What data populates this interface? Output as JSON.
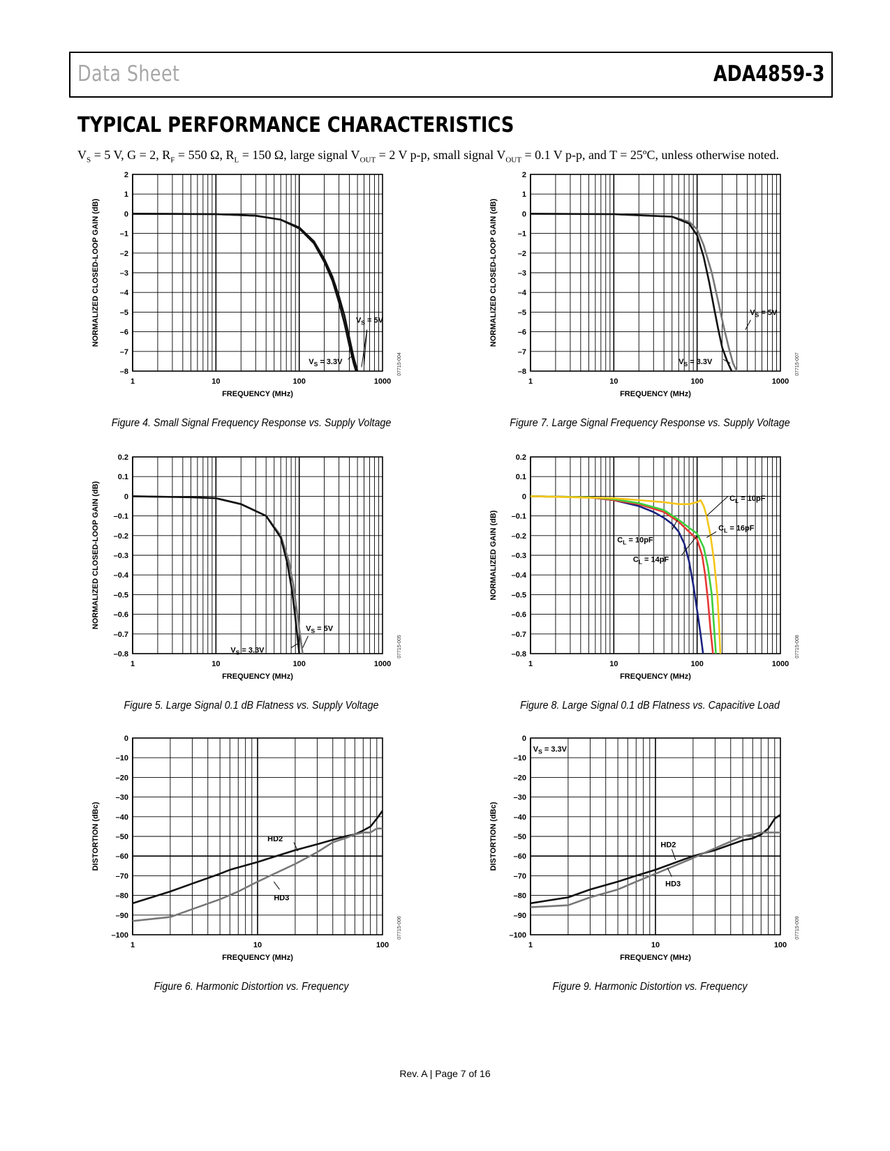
{
  "header": {
    "doc_type": "Data Sheet",
    "part_number": "ADA4859-3"
  },
  "section_title": "TYPICAL PERFORMANCE CHARACTERISTICS",
  "conditions": {
    "p1": "V",
    "s1": "S",
    "p2": " = 5 V, G = 2, R",
    "s2": "F",
    "p3": " = 550 Ω, R",
    "s3": "L",
    "p4": " = 150 Ω, large signal V",
    "s4": "OUT",
    "p5": " = 2 V p-p, small signal V",
    "s5": "OUT",
    "p6": " = 0.1 V p-p, and T = 25ºC, unless otherwise noted."
  },
  "footer": "Rev. A | Page 7 of 16",
  "colors": {
    "black": "#111111",
    "gray": "#777777",
    "navy": "#1a237e",
    "red": "#e53935",
    "green": "#3ccf3c",
    "yellow": "#f5c518"
  },
  "chart_data": [
    {
      "id": "fig4",
      "type": "line",
      "caption": "Figure 4. Small Signal Frequency Response vs. Supply Voltage",
      "code": "07715-004",
      "xlabel": "FREQUENCY (MHz)",
      "ylabel": "NORMALIZED CLOSED-LOOP GAIN (dB)",
      "xscale": "log",
      "xlim": [
        1,
        1000
      ],
      "ylim": [
        -8,
        2
      ],
      "xticks": [
        1,
        10,
        100,
        1000
      ],
      "xtick_labels": [
        "1",
        "10",
        "100",
        "1000"
      ],
      "yticks": [
        2,
        1,
        0,
        -1,
        -2,
        -3,
        -4,
        -5,
        -6,
        -7,
        -8
      ],
      "ytick_labels": [
        "2",
        "1",
        "0",
        "–1",
        "–2",
        "–3",
        "–4",
        "–5",
        "–6",
        "–7",
        "–8"
      ],
      "series": [
        {
          "name": "VS = 5V",
          "color": "#111111",
          "x": [
            1,
            10,
            30,
            60,
            100,
            150,
            200,
            250,
            300,
            350,
            400,
            450,
            500
          ],
          "y": [
            0,
            -0.02,
            -0.1,
            -0.3,
            -0.7,
            -1.4,
            -2.3,
            -3.2,
            -4.2,
            -5.2,
            -6.3,
            -7.3,
            -8
          ]
        },
        {
          "name": "VS = 3.3V",
          "color": "#111111",
          "x": [
            1,
            10,
            30,
            60,
            100,
            150,
            200,
            250,
            300,
            350,
            400,
            450,
            480
          ],
          "y": [
            0,
            -0.02,
            -0.1,
            -0.3,
            -0.75,
            -1.5,
            -2.45,
            -3.4,
            -4.5,
            -5.6,
            -6.7,
            -7.6,
            -8
          ]
        }
      ],
      "annotations": [
        {
          "main": "V",
          "sub": "S",
          "rest": " = 5V",
          "x": 480,
          "y": -5.4,
          "anchor": "start",
          "leaders": [
            [
              650,
              -5.9,
              560,
              -7.8
            ],
            [
              650,
              -5.9,
              600,
              -7.7
            ]
          ]
        },
        {
          "main": "V",
          "sub": "S",
          "rest": " = 3.3V",
          "x": 130,
          "y": -7.5,
          "anchor": "start",
          "leaders": [
            [
              385,
              -7.4,
              440,
              -7.2
            ]
          ]
        }
      ]
    },
    {
      "id": "fig7",
      "type": "line",
      "caption": "Figure 7. Large Signal Frequency Response vs. Supply Voltage",
      "code": "07715-007",
      "xlabel": "FREQUENCY (MHz)",
      "ylabel": "NORMALIZED CLOSED-LOOP GAIN (dB)",
      "xscale": "log",
      "xlim": [
        1,
        1000
      ],
      "ylim": [
        -8,
        2
      ],
      "xticks": [
        1,
        10,
        100,
        1000
      ],
      "xtick_labels": [
        "1",
        "10",
        "100",
        "1000"
      ],
      "yticks": [
        2,
        1,
        0,
        -1,
        -2,
        -3,
        -4,
        -5,
        -6,
        -7,
        -8
      ],
      "ytick_labels": [
        "2",
        "1",
        "0",
        "–1",
        "–2",
        "–3",
        "–4",
        "–5",
        "–6",
        "–7",
        "–8"
      ],
      "series": [
        {
          "name": "VS = 5V",
          "color": "#777777",
          "x": [
            1,
            10,
            50,
            80,
            100,
            120,
            150,
            180,
            210,
            240,
            270,
            300
          ],
          "y": [
            0,
            -0.02,
            -0.15,
            -0.4,
            -0.8,
            -1.6,
            -3.0,
            -4.5,
            -5.8,
            -6.8,
            -7.6,
            -8
          ]
        },
        {
          "name": "VS = 3.3V",
          "color": "#111111",
          "x": [
            1,
            10,
            50,
            80,
            100,
            120,
            140,
            160,
            180,
            200,
            230,
            260
          ],
          "y": [
            0,
            -0.02,
            -0.15,
            -0.5,
            -1.1,
            -2.2,
            -3.5,
            -4.8,
            -5.9,
            -6.8,
            -7.5,
            -8
          ]
        }
      ],
      "annotations": [
        {
          "main": "V",
          "sub": "S",
          "rest": " = 5V",
          "x": 430,
          "y": -5.0,
          "anchor": "start",
          "leaders": [
            [
              440,
              -5.4,
              380,
              -5.9
            ]
          ]
        },
        {
          "main": "V",
          "sub": "S",
          "rest": " = 3.3V",
          "x": 60,
          "y": -7.5,
          "anchor": "start",
          "leaders": [
            [
              205,
              -7.4,
              250,
              -7.6
            ]
          ]
        }
      ]
    },
    {
      "id": "fig5",
      "type": "line",
      "caption": "Figure 5. Large Signal 0.1 dB Flatness vs. Supply Voltage",
      "code": "07715-005",
      "xlabel": "FREQUENCY (MHz)",
      "ylabel": "NORMALIZED CLOSED-LOOP GAIN (dB)",
      "xscale": "log",
      "xlim": [
        1,
        1000
      ],
      "ylim": [
        -0.8,
        0.2
      ],
      "xticks": [
        1,
        10,
        100,
        1000
      ],
      "xtick_labels": [
        "1",
        "10",
        "100",
        "1000"
      ],
      "yticks": [
        0.2,
        0.1,
        0,
        -0.1,
        -0.2,
        -0.3,
        -0.4,
        -0.5,
        -0.6,
        -0.7,
        -0.8
      ],
      "ytick_labels": [
        "0.2",
        "0.1",
        "0",
        "–0.1",
        "–0.2",
        "–0.3",
        "–0.4",
        "–0.5",
        "–0.6",
        "–0.7",
        "–0.8"
      ],
      "series": [
        {
          "name": "VS = 5V",
          "color": "#777777",
          "x": [
            1,
            5,
            10,
            20,
            40,
            60,
            75,
            85,
            95,
            102,
            110
          ],
          "y": [
            0,
            -0.005,
            -0.01,
            -0.04,
            -0.1,
            -0.2,
            -0.33,
            -0.45,
            -0.6,
            -0.7,
            -0.8
          ]
        },
        {
          "name": "VS = 3.3V",
          "color": "#111111",
          "x": [
            1,
            5,
            10,
            20,
            40,
            60,
            72,
            82,
            90,
            95,
            100
          ],
          "y": [
            0,
            -0.005,
            -0.01,
            -0.04,
            -0.1,
            -0.21,
            -0.34,
            -0.48,
            -0.62,
            -0.71,
            -0.8
          ]
        }
      ],
      "annotations": [
        {
          "main": "V",
          "sub": "S",
          "rest": " = 5V",
          "x": 120,
          "y": -0.67,
          "anchor": "start",
          "leaders": [
            [
              128,
              -0.71,
              110,
              -0.77
            ]
          ]
        },
        {
          "main": "V",
          "sub": "S",
          "rest": " = 3.3V",
          "x": 15,
          "y": -0.78,
          "anchor": "start",
          "leaders": [
            [
              80,
              -0.77,
              95,
              -0.75
            ]
          ]
        }
      ]
    },
    {
      "id": "fig8",
      "type": "line",
      "caption": "Figure 8. Large Signal 0.1 dB Flatness vs. Capacitive Load",
      "code": "07715-008",
      "xlabel": "FREQUENCY (MHz)",
      "ylabel": "NORMALIZED GAIN (dB)",
      "xscale": "log",
      "xlim": [
        1,
        1000
      ],
      "ylim": [
        -0.8,
        0.2
      ],
      "xticks": [
        1,
        10,
        100,
        1000
      ],
      "xtick_labels": [
        "1",
        "10",
        "100",
        "1000"
      ],
      "yticks": [
        0.2,
        0.1,
        0,
        -0.1,
        -0.2,
        -0.3,
        -0.4,
        -0.5,
        -0.6,
        -0.7,
        -0.8
      ],
      "ytick_labels": [
        "0.2",
        "0.1",
        "0",
        "–0.1",
        "–0.2",
        "–0.3",
        "–0.4",
        "–0.5",
        "–0.6",
        "–0.7",
        "–0.8"
      ],
      "series": [
        {
          "name": "navy",
          "color": "#1a237e",
          "x": [
            1,
            5,
            10,
            20,
            30,
            40,
            50,
            60,
            70,
            80,
            90,
            100,
            110,
            118
          ],
          "y": [
            0,
            -0.005,
            -0.02,
            -0.05,
            -0.08,
            -0.11,
            -0.14,
            -0.18,
            -0.24,
            -0.33,
            -0.45,
            -0.58,
            -0.7,
            -0.8
          ]
        },
        {
          "name": "red",
          "color": "#e53935",
          "x": [
            1,
            5,
            10,
            20,
            40,
            60,
            80,
            100,
            115,
            125,
            135,
            145,
            155
          ],
          "y": [
            0,
            -0.005,
            -0.02,
            -0.04,
            -0.08,
            -0.13,
            -0.18,
            -0.22,
            -0.3,
            -0.4,
            -0.53,
            -0.68,
            -0.8
          ]
        },
        {
          "name": "green",
          "color": "#3ccf3c",
          "x": [
            1,
            5,
            10,
            20,
            40,
            60,
            80,
            100,
            120,
            135,
            150,
            160,
            168
          ],
          "y": [
            0,
            -0.005,
            -0.015,
            -0.035,
            -0.07,
            -0.12,
            -0.16,
            -0.19,
            -0.26,
            -0.36,
            -0.5,
            -0.67,
            -0.8
          ]
        },
        {
          "name": "yellow",
          "color": "#f5c518",
          "x": [
            1,
            10,
            20,
            40,
            60,
            80,
            100,
            110,
            120,
            130,
            145,
            160,
            175,
            185,
            190
          ],
          "y": [
            0,
            -0.01,
            -0.02,
            -0.03,
            -0.04,
            -0.04,
            -0.03,
            -0.02,
            -0.05,
            -0.1,
            -0.2,
            -0.33,
            -0.5,
            -0.68,
            -0.8
          ]
        }
      ],
      "annotations": [
        {
          "main": "C",
          "sub": "L",
          "rest": " = 10pF",
          "x": 245,
          "y": -0.01,
          "anchor": "start",
          "leaders": [
            [
              235,
              0.0,
              130,
              -0.1
            ]
          ]
        },
        {
          "main": "C",
          "sub": "L",
          "rest": " = 16pF",
          "x": 180,
          "y": -0.16,
          "anchor": "start",
          "leaders": [
            [
              170,
              -0.18,
              130,
              -0.21
            ]
          ]
        },
        {
          "main": "C",
          "sub": "L",
          "rest": " = 10pF",
          "x": 11,
          "y": -0.22,
          "anchor": "start",
          "leaders": [
            [
              50,
              -0.17,
              58,
              -0.12
            ]
          ]
        },
        {
          "main": "C",
          "sub": "L",
          "rest": " = 14pF",
          "x": 17,
          "y": -0.32,
          "anchor": "start",
          "leaders": [
            [
              65,
              -0.3,
              100,
              -0.2
            ]
          ]
        }
      ]
    },
    {
      "id": "fig6",
      "type": "line",
      "caption": "Figure 6. Harmonic Distortion vs. Frequency",
      "code": "07715-006",
      "xlabel": "FREQUENCY (MHz)",
      "ylabel": "DISTORTION (dBc)",
      "xscale": "log",
      "xlim": [
        1,
        100
      ],
      "ylim": [
        -100,
        0
      ],
      "xticks": [
        1,
        10,
        100
      ],
      "xtick_labels": [
        "1",
        "10",
        "100"
      ],
      "yticks": [
        0,
        -10,
        -20,
        -30,
        -40,
        -50,
        -60,
        -70,
        -80,
        -90,
        -100
      ],
      "ytick_labels": [
        "0",
        "–10",
        "–20",
        "–30",
        "–40",
        "–50",
        "–60",
        "–70",
        "–80",
        "–90",
        "–100"
      ],
      "series": [
        {
          "name": "HD2",
          "color": "#111111",
          "x": [
            1,
            2,
            3,
            5,
            6,
            10,
            20,
            30,
            50,
            60,
            70,
            80,
            90,
            100
          ],
          "y": [
            -84,
            -78,
            -74,
            -69,
            -67,
            -63,
            -57,
            -54,
            -50,
            -49,
            -47,
            -45,
            -41,
            -37
          ]
        },
        {
          "name": "HD3",
          "color": "#777777",
          "x": [
            1,
            2,
            3,
            5,
            7,
            10,
            20,
            30,
            40,
            50,
            60,
            70,
            80,
            90,
            100
          ],
          "y": [
            -93,
            -91,
            -87,
            -82,
            -78,
            -73,
            -64,
            -58,
            -53,
            -51,
            -49,
            -48,
            -48,
            -46,
            -46
          ]
        }
      ],
      "annotations": [
        {
          "text": "HD2",
          "x": 12,
          "y": -51,
          "anchor": "start",
          "leaders": [
            [
              19.5,
              -53,
              21,
              -57.5
            ]
          ]
        },
        {
          "text": "HD3",
          "x": 13.5,
          "y": -81,
          "anchor": "start",
          "leaders": [
            [
              15,
              -77,
              13.5,
              -73
            ]
          ]
        }
      ]
    },
    {
      "id": "fig9",
      "type": "line",
      "caption": "Figure 9. Harmonic Distortion vs. Frequency",
      "code": "07715-009",
      "xlabel": "FREQUENCY (MHz)",
      "ylabel": "DISTORTION (dBc)",
      "xscale": "log",
      "xlim": [
        1,
        100
      ],
      "ylim": [
        -100,
        0
      ],
      "xticks": [
        1,
        10,
        100
      ],
      "xtick_labels": [
        "1",
        "10",
        "100"
      ],
      "yticks": [
        0,
        -10,
        -20,
        -30,
        -40,
        -50,
        -60,
        -70,
        -80,
        -90,
        -100
      ],
      "ytick_labels": [
        "0",
        "–10",
        "–20",
        "–30",
        "–40",
        "–50",
        "–60",
        "–70",
        "–80",
        "–90",
        "–100"
      ],
      "series": [
        {
          "name": "HD2",
          "color": "#111111",
          "x": [
            1,
            2,
            3,
            5,
            7,
            10,
            20,
            30,
            50,
            60,
            70,
            80,
            90,
            100
          ],
          "y": [
            -84,
            -81,
            -77,
            -73,
            -70,
            -67,
            -60,
            -57,
            -52,
            -51,
            -49,
            -46,
            -41,
            -39
          ]
        },
        {
          "name": "HD3",
          "color": "#777777",
          "x": [
            1,
            2,
            3,
            5,
            7,
            10,
            20,
            30,
            50,
            60,
            70,
            80,
            90,
            100
          ],
          "y": [
            -86,
            -85,
            -81,
            -77,
            -73,
            -69,
            -61,
            -56,
            -50,
            -49,
            -48,
            -48,
            -48,
            -48
          ]
        }
      ],
      "annotations": [
        {
          "main": "V",
          "sub": "S",
          "rest": " = 3.3V",
          "x": 1.05,
          "y": -5.5,
          "anchor": "start"
        },
        {
          "text": "HD2",
          "x": 11,
          "y": -54,
          "anchor": "start",
          "leaders": [
            [
              13.5,
              -56.5,
              14.5,
              -62
            ]
          ]
        },
        {
          "text": "HD3",
          "x": 12,
          "y": -74,
          "anchor": "start",
          "leaders": [
            [
              13.5,
              -70.5,
              12.5,
              -66
            ]
          ]
        }
      ]
    }
  ]
}
